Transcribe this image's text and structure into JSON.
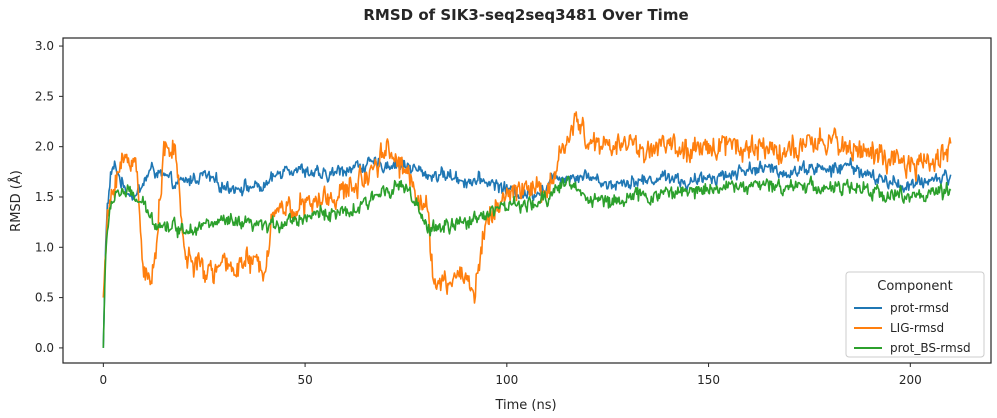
{
  "chart_data": {
    "type": "line",
    "title": "RMSD of SIK3-seq2seq3481 Over Time",
    "xlabel": "Time (ns)",
    "ylabel": "RMSD (Å)",
    "xlim": [
      -10,
      220
    ],
    "ylim": [
      -0.15,
      3.08
    ],
    "xticks": [
      0,
      50,
      100,
      150,
      200
    ],
    "yticks": [
      0.0,
      0.5,
      1.0,
      1.5,
      2.0,
      2.5,
      3.0
    ],
    "xtick_labels": [
      "0",
      "50",
      "100",
      "150",
      "200"
    ],
    "ytick_labels": [
      "0.0",
      "0.5",
      "1.0",
      "1.5",
      "2.0",
      "2.5",
      "3.0"
    ],
    "grid": false,
    "legend": {
      "title": "Component",
      "placement": "lower-right"
    },
    "series": [
      {
        "name": "prot-rmsd",
        "color": "#1f77b4",
        "x": [
          0,
          0.5,
          1,
          2,
          3,
          5,
          8,
          10,
          12,
          15,
          18,
          20,
          25,
          30,
          35,
          40,
          42,
          45,
          50,
          55,
          60,
          65,
          70,
          75,
          80,
          85,
          90,
          95,
          100,
          105,
          110,
          112,
          115,
          120,
          125,
          130,
          135,
          140,
          145,
          150,
          155,
          160,
          165,
          170,
          175,
          180,
          185,
          190,
          195,
          200,
          205,
          210
        ],
        "values": [
          0.0,
          1.0,
          1.4,
          1.75,
          1.8,
          1.6,
          1.5,
          1.65,
          1.78,
          1.7,
          1.62,
          1.65,
          1.72,
          1.6,
          1.6,
          1.6,
          1.68,
          1.8,
          1.76,
          1.7,
          1.78,
          1.82,
          1.82,
          1.82,
          1.72,
          1.72,
          1.66,
          1.66,
          1.58,
          1.52,
          1.6,
          1.72,
          1.7,
          1.72,
          1.62,
          1.66,
          1.66,
          1.72,
          1.62,
          1.7,
          1.72,
          1.78,
          1.78,
          1.74,
          1.8,
          1.76,
          1.82,
          1.7,
          1.65,
          1.6,
          1.68,
          1.7
        ],
        "noise": 0.09
      },
      {
        "name": "LIG-rmsd",
        "color": "#ff7f0e",
        "x": [
          0,
          0.5,
          1,
          2,
          3,
          5,
          8,
          10,
          12,
          15,
          18,
          20,
          25,
          30,
          35,
          40,
          42,
          45,
          50,
          55,
          60,
          65,
          70,
          75,
          80,
          82,
          85,
          88,
          90,
          92,
          95,
          100,
          105,
          110,
          112,
          115,
          118,
          120,
          125,
          130,
          135,
          140,
          145,
          150,
          155,
          160,
          165,
          170,
          175,
          180,
          185,
          190,
          195,
          200,
          205,
          210
        ],
        "values": [
          0.5,
          0.9,
          1.25,
          1.5,
          1.7,
          1.85,
          1.88,
          0.8,
          0.6,
          1.95,
          1.95,
          0.95,
          0.75,
          0.8,
          0.85,
          0.8,
          1.35,
          1.4,
          1.4,
          1.48,
          1.55,
          1.7,
          2.0,
          1.75,
          1.4,
          0.65,
          0.6,
          0.75,
          0.7,
          0.55,
          1.3,
          1.5,
          1.62,
          1.52,
          1.75,
          2.1,
          2.25,
          2.05,
          2.0,
          2.05,
          1.95,
          2.05,
          1.9,
          2.0,
          2.05,
          1.98,
          2.0,
          1.95,
          2.0,
          2.05,
          2.0,
          1.95,
          1.85,
          1.8,
          1.85,
          2.0
        ],
        "noise": 0.17
      },
      {
        "name": "prot_BS-rmsd",
        "color": "#2ca02c",
        "x": [
          0,
          0.5,
          1,
          2,
          3,
          5,
          8,
          10,
          12,
          15,
          18,
          20,
          25,
          30,
          35,
          40,
          42,
          45,
          50,
          55,
          60,
          65,
          70,
          75,
          80,
          85,
          90,
          95,
          100,
          105,
          110,
          112,
          115,
          120,
          125,
          130,
          135,
          140,
          145,
          150,
          155,
          160,
          165,
          170,
          175,
          180,
          185,
          190,
          195,
          200,
          205,
          210
        ],
        "values": [
          0.0,
          0.9,
          1.15,
          1.4,
          1.55,
          1.55,
          1.5,
          1.4,
          1.28,
          1.22,
          1.2,
          1.18,
          1.22,
          1.25,
          1.22,
          1.2,
          1.22,
          1.26,
          1.3,
          1.35,
          1.32,
          1.42,
          1.6,
          1.6,
          1.2,
          1.2,
          1.25,
          1.35,
          1.42,
          1.4,
          1.48,
          1.6,
          1.65,
          1.5,
          1.45,
          1.5,
          1.5,
          1.55,
          1.55,
          1.6,
          1.6,
          1.62,
          1.6,
          1.62,
          1.62,
          1.58,
          1.6,
          1.55,
          1.52,
          1.52,
          1.52,
          1.55
        ],
        "noise": 0.1
      }
    ]
  }
}
